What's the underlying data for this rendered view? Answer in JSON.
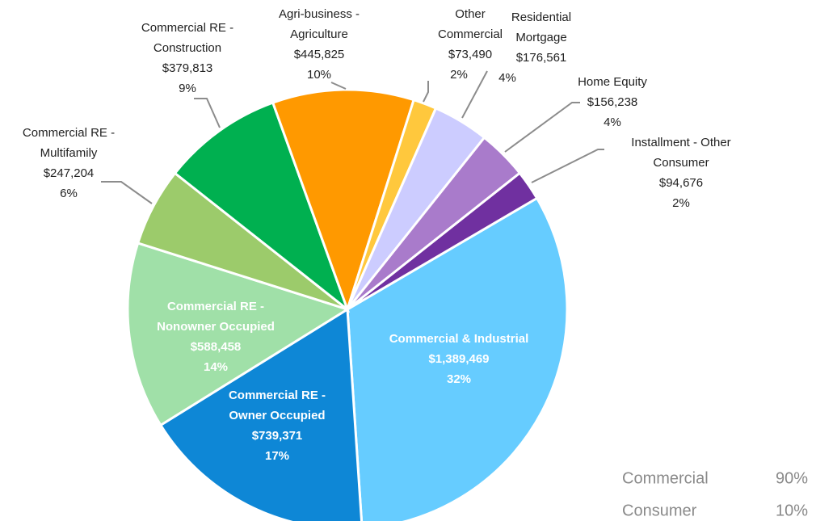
{
  "chart_data": {
    "type": "pie",
    "categories": [
      "Commercial & Industrial",
      "Commercial RE -\nOwner Occupied",
      "Commercial RE -\nNonowner Occupied",
      "Commercial RE -\nMultifamily",
      "Commercial RE -\nConstruction",
      "Agri-business -\nAgriculture",
      "Other\nCommercial",
      "Residential\nMortgage",
      "Home Equity",
      "Installment - Other\nConsumer"
    ],
    "values": [
      1389469,
      739371,
      588458,
      247204,
      379813,
      445825,
      73490,
      176561,
      156238,
      94676
    ],
    "value_labels": [
      "$1,389,469",
      "$739,371",
      "$588,458",
      "$247,204",
      "$379,813",
      "$445,825",
      "$73,490",
      "$176,561",
      "$156,238",
      "$94,676"
    ],
    "percent_labels": [
      "32%",
      "17%",
      "14%",
      "6%",
      "9%",
      "10%",
      "2%",
      "4%",
      "4%",
      "2%"
    ],
    "colors": [
      "#66ccff",
      "#0e87d6",
      "#a0e0a8",
      "#9ccb6b",
      "#00b050",
      "#ff9900",
      "#ffc83d",
      "#ccccff",
      "#a97bcb",
      "#7030a0"
    ],
    "summary": {
      "names": [
        "Commercial",
        "Consumer"
      ],
      "values": [
        90,
        10
      ],
      "value_labels": [
        "90%",
        "10%"
      ]
    }
  }
}
